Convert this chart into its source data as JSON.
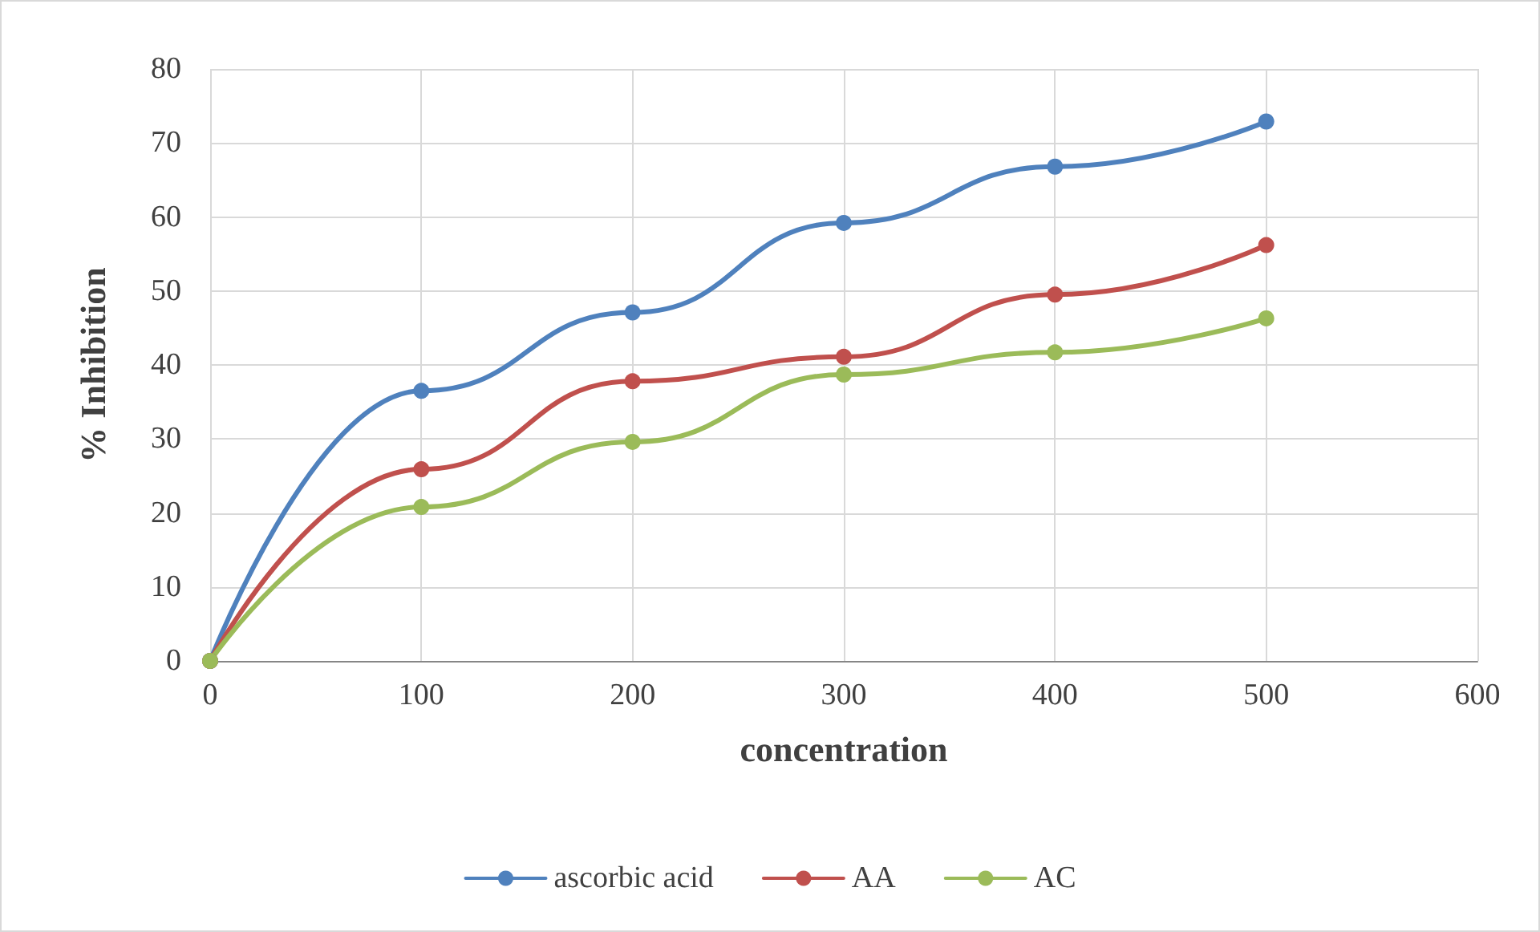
{
  "chart_data": {
    "type": "line",
    "xlabel": "concentration",
    "ylabel": "% Inhibition",
    "x": [
      0,
      100,
      200,
      300,
      400,
      500
    ],
    "series": [
      {
        "name": "ascorbic acid",
        "color": "#4f81bd",
        "values": [
          0,
          36.5,
          47.1,
          59.2,
          66.8,
          72.9
        ]
      },
      {
        "name": "AA",
        "color": "#c0504d",
        "values": [
          0,
          25.9,
          37.8,
          41.1,
          49.5,
          56.2
        ]
      },
      {
        "name": "AC",
        "color": "#9bbb59",
        "values": [
          0,
          20.8,
          29.6,
          38.7,
          41.7,
          46.3
        ]
      }
    ],
    "xlim": [
      0,
      600
    ],
    "xticks": [
      0,
      100,
      200,
      300,
      400,
      500,
      600
    ],
    "ylim": [
      0,
      80
    ],
    "yticks": [
      0,
      10,
      20,
      30,
      40,
      50,
      60,
      70,
      80
    ],
    "grid": true,
    "legend": "bottom",
    "marker": "circle",
    "line_style": "solid"
  }
}
